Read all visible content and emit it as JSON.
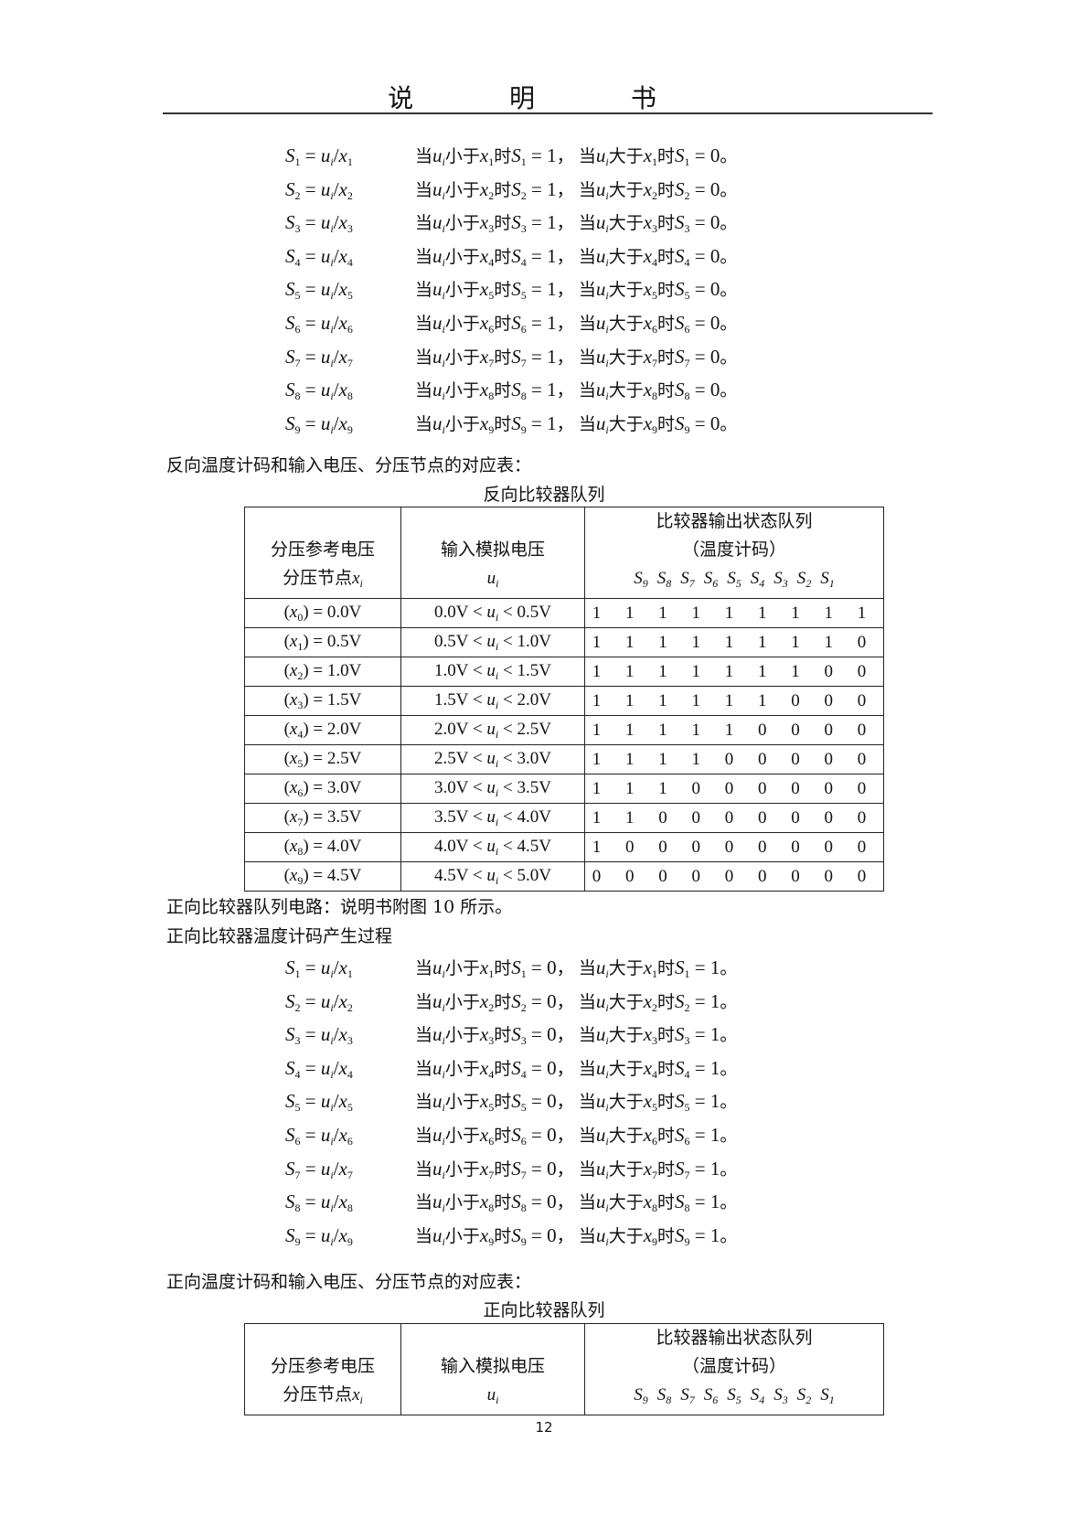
{
  "header": {
    "title": "说 明 书"
  },
  "words": {
    "when": "当",
    "less": "小于",
    "greater": "大于",
    "then": "时",
    "comma": "，",
    "period": "。"
  },
  "section1": {
    "formulas": [
      {
        "n": "1",
        "less_val": "1",
        "greater_val": "0"
      },
      {
        "n": "2",
        "less_val": "1",
        "greater_val": "0"
      },
      {
        "n": "3",
        "less_val": "1",
        "greater_val": "0"
      },
      {
        "n": "4",
        "less_val": "1",
        "greater_val": "0"
      },
      {
        "n": "5",
        "less_val": "1",
        "greater_val": "0"
      },
      {
        "n": "6",
        "less_val": "1",
        "greater_val": "0"
      },
      {
        "n": "7",
        "less_val": "1",
        "greater_val": "0"
      },
      {
        "n": "8",
        "less_val": "1",
        "greater_val": "0"
      },
      {
        "n": "9",
        "less_val": "1",
        "greater_val": "0"
      }
    ],
    "table_intro": "反向温度计码和输入电压、分压节点的对应表：",
    "table_caption": "反向比较器队列"
  },
  "table_header": {
    "col1_line1": "分压参考电压",
    "col1_line2": "分压节点",
    "col1_var": "x",
    "col1_sub": "i",
    "col2_line1": "输入模拟电压",
    "col2_var": "u",
    "col2_sub": "i",
    "col3_line1": "比较器输出状态队列",
    "col3_line2": "（温度计码）",
    "signals": [
      "9",
      "8",
      "7",
      "6",
      "5",
      "4",
      "3",
      "2",
      "1"
    ]
  },
  "table1_rows": [
    {
      "node": "0",
      "ref": "0.0V",
      "low": "0.0V",
      "high": "0.5V",
      "bits": "1 1 1 1 1 1 1 1 1"
    },
    {
      "node": "1",
      "ref": "0.5V",
      "low": "0.5V",
      "high": "1.0V",
      "bits": "1 1 1 1 1 1 1 1 0"
    },
    {
      "node": "2",
      "ref": "1.0V",
      "low": "1.0V",
      "high": "1.5V",
      "bits": "1 1 1 1 1 1 1 0 0"
    },
    {
      "node": "3",
      "ref": "1.5V",
      "low": "1.5V",
      "high": "2.0V",
      "bits": "1 1 1 1 1 1 0 0 0"
    },
    {
      "node": "4",
      "ref": "2.0V",
      "low": "2.0V",
      "high": "2.5V",
      "bits": "1 1 1 1 1 0 0 0 0"
    },
    {
      "node": "5",
      "ref": "2.5V",
      "low": "2.5V",
      "high": "3.0V",
      "bits": "1 1 1 1 0 0 0 0 0"
    },
    {
      "node": "6",
      "ref": "3.0V",
      "low": "3.0V",
      "high": "3.5V",
      "bits": "1 1 1 0 0 0 0 0 0"
    },
    {
      "node": "7",
      "ref": "3.5V",
      "low": "3.5V",
      "high": "4.0V",
      "bits": "1 1 0 0 0 0 0 0 0"
    },
    {
      "node": "8",
      "ref": "4.0V",
      "low": "4.0V",
      "high": "4.5V",
      "bits": "1 0 0 0 0 0 0 0 0"
    },
    {
      "node": "9",
      "ref": "4.5V",
      "low": "4.5V",
      "high": "5.0V",
      "bits": "0 0 0 0 0 0 0 0 0"
    }
  ],
  "section2": {
    "circuit_note": "正向比较器队列电路：说明书附图 10 所示。",
    "process_title": "正向比较器温度计码产生过程",
    "formulas": [
      {
        "n": "1",
        "less_val": "0",
        "greater_val": "1"
      },
      {
        "n": "2",
        "less_val": "0",
        "greater_val": "1"
      },
      {
        "n": "3",
        "less_val": "0",
        "greater_val": "1"
      },
      {
        "n": "4",
        "less_val": "0",
        "greater_val": "1"
      },
      {
        "n": "5",
        "less_val": "0",
        "greater_val": "1"
      },
      {
        "n": "6",
        "less_val": "0",
        "greater_val": "1"
      },
      {
        "n": "7",
        "less_val": "0",
        "greater_val": "1"
      },
      {
        "n": "8",
        "less_val": "0",
        "greater_val": "1"
      },
      {
        "n": "9",
        "less_val": "0",
        "greater_val": "1"
      }
    ],
    "table_intro": "正向温度计码和输入电压、分压节点的对应表：",
    "table_caption": "正向比较器队列"
  },
  "footer": {
    "page_number": "12"
  }
}
